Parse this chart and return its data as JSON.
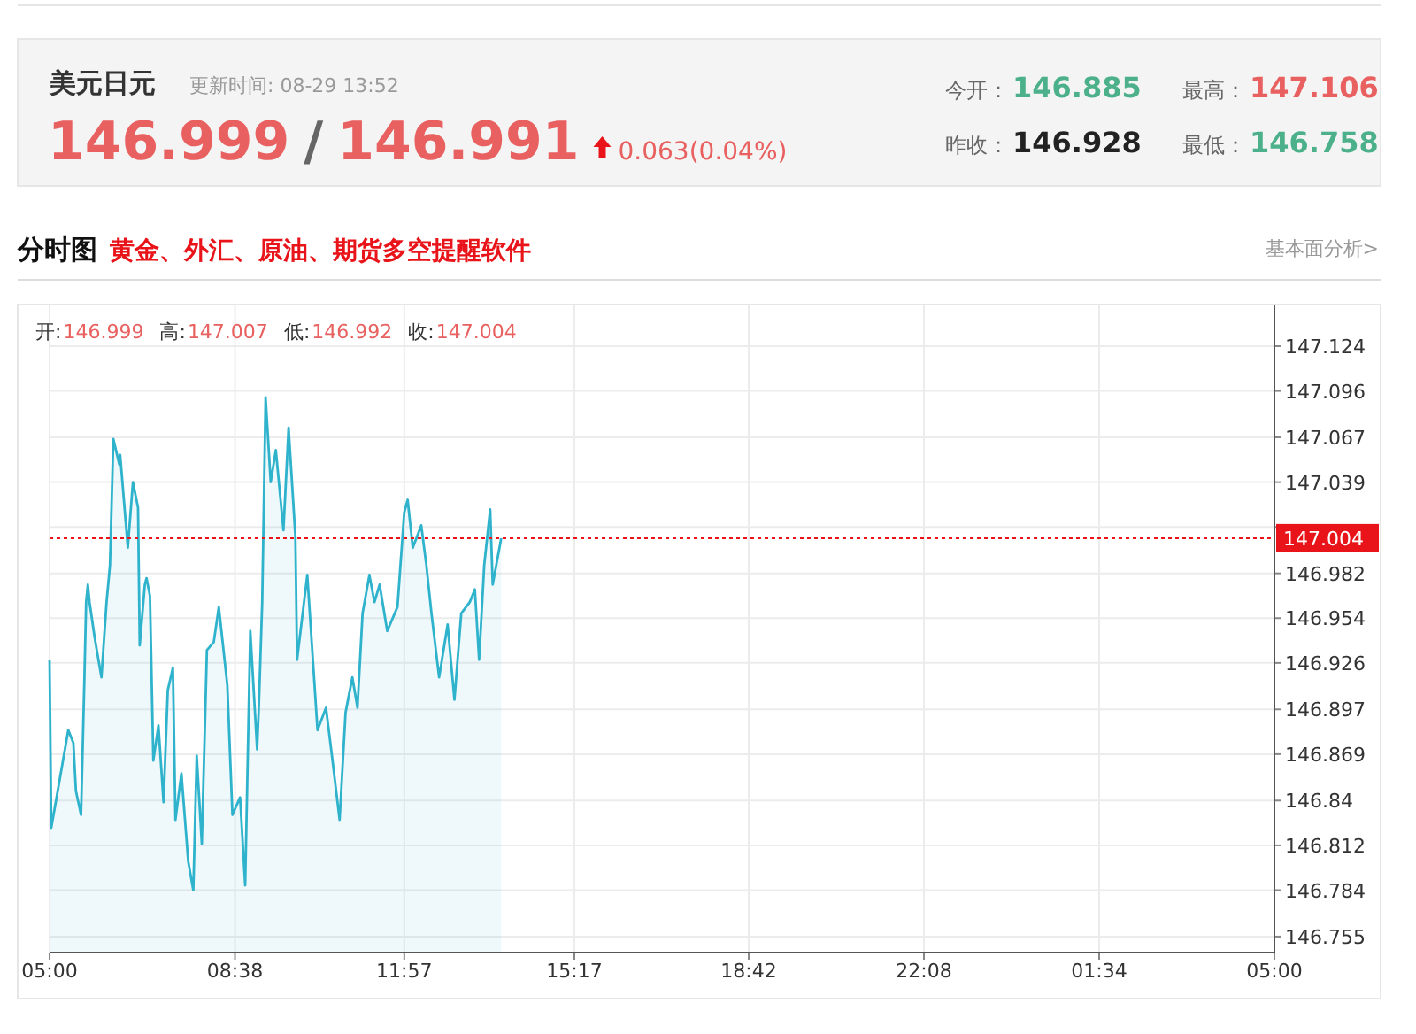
{
  "chart_data": {
    "type": "area",
    "title": "美元日元",
    "subtitle": "更新时间: 08-29 13:52",
    "annotations": [
      "146.999",
      "/",
      "146.991",
      "0.063(0.04%)",
      "今开：",
      "146.885",
      "最高：",
      "147.106",
      "昨收：",
      "146.928",
      "最低：",
      "146.758",
      "分时图",
      "黄金、外汇、原油、期货多空提醒软件",
      "基本面分析>",
      "开:",
      "146.999",
      "高:",
      "147.007",
      "低:",
      "146.992",
      "收:",
      "147.004"
    ],
    "x": [
      "--08-29T05:00",
      "--08-29T05:02",
      "--08-29T05:06",
      "--08-29T05:22",
      "--08-29T05:28",
      "--08-29T05:31",
      "--08-29T05:37",
      "--08-29T05:41",
      "--08-29T05:43",
      "--08-29T05:45",
      "--08-29T05:47",
      "--08-29T05:53",
      "--08-29T06:01",
      "--08-29T06:07",
      "--08-29T06:11",
      "--08-29T06:15",
      "--08-29T06:22",
      "--08-29T06:23",
      "--08-29T06:32",
      "--08-29T06:38",
      "--08-29T06:44",
      "--08-29T06:46",
      "--08-29T06:52",
      "--08-29T06:54",
      "--08-29T06:58",
      "--08-29T07:02",
      "--08-29T07:08",
      "--08-29T07:14",
      "--08-29T07:19",
      "--08-29T07:25",
      "--08-29T07:28",
      "--08-29T07:35",
      "--08-29T07:43",
      "--08-29T07:49",
      "--08-29T07:53",
      "--08-29T07:59",
      "--08-29T08:05",
      "--08-29T08:13",
      "--08-29T08:19",
      "--08-29T08:29",
      "--08-29T08:35",
      "--08-29T08:44",
      "--08-29T08:50",
      "--08-29T08:56",
      "--08-29T09:04",
      "--08-29T09:06",
      "--08-29T09:10",
      "--08-29T09:14",
      "--08-29T09:20",
      "--08-29T09:26",
      "--08-29T09:35",
      "--08-29T09:41",
      "--08-29T09:49",
      "--08-29T09:51",
      "--08-29T10:03",
      "--08-29T10:15",
      "--08-29T10:25",
      "--08-29T10:32",
      "--08-29T10:41",
      "--08-29T10:48",
      "--08-29T10:56",
      "--08-29T11:02",
      "--08-29T11:08",
      "--08-29T11:16",
      "--08-29T11:22",
      "--08-29T11:28",
      "--08-29T11:37",
      "--08-29T11:49",
      "--08-29T11:57",
      "--08-29T12:01",
      "--08-29T12:07",
      "--08-29T12:17",
      "--08-29T12:23",
      "--08-29T12:29",
      "--08-29T12:38",
      "--08-29T12:48",
      "--08-29T12:56",
      "--08-29T13:04",
      "--08-29T13:14",
      "--08-29T13:20",
      "--08-29T13:25",
      "--08-29T13:31",
      "--08-29T13:38",
      "--08-29T13:41",
      "--08-29T13:51"
    ],
    "series": [
      {
        "color": "#2fb3cc",
        "values": [
          146.928,
          146.823,
          146.835,
          146.884,
          146.876,
          146.846,
          146.831,
          146.917,
          146.964,
          146.975,
          146.964,
          146.942,
          146.917,
          146.964,
          146.987,
          147.066,
          147.05,
          147.056,
          146.998,
          147.039,
          147.023,
          146.937,
          146.975,
          146.979,
          146.968,
          146.865,
          146.887,
          146.839,
          146.909,
          146.923,
          146.828,
          146.857,
          146.802,
          146.784,
          146.868,
          146.813,
          146.934,
          146.939,
          146.961,
          146.912,
          146.831,
          146.842,
          146.787,
          146.946,
          146.872,
          146.898,
          146.964,
          147.092,
          147.039,
          147.059,
          147.009,
          147.073,
          147.005,
          146.928,
          146.981,
          146.884,
          146.898,
          146.868,
          146.828,
          146.895,
          146.917,
          146.898,
          146.957,
          146.981,
          146.964,
          146.975,
          146.946,
          146.961,
          147.02,
          147.028,
          146.998,
          147.012,
          146.987,
          146.957,
          146.917,
          146.95,
          146.903,
          146.957,
          146.964,
          146.972,
          146.928,
          146.987,
          147.022,
          146.975,
          147.004
        ]
      }
    ],
    "xlim": [
      "--08-29T05:00",
      "--08-30T05:00"
    ],
    "xticks": [
      {
        "value": "--08-29T05:00",
        "label": "05:00"
      },
      {
        "value": "--08-29T08:38",
        "label": "08:38"
      },
      {
        "value": "--08-29T11:57",
        "label": "11:57"
      },
      {
        "value": "--08-29T15:17",
        "label": "15:17"
      },
      {
        "value": "--08-29T18:42",
        "label": "18:42"
      },
      {
        "value": "--08-29T22:08",
        "label": "22:08"
      },
      {
        "value": "--08-30T01:34",
        "label": "01:34"
      },
      {
        "value": "--08-30T05:00",
        "label": "05:00"
      }
    ],
    "ylim": [
      146.745,
      147.15
    ],
    "yticks": [
      146.755,
      146.784,
      146.812,
      146.84,
      146.869,
      146.897,
      146.926,
      146.954,
      146.982,
      {
        "value": 147.011,
        "label": null
      },
      147.039,
      147.067,
      147.096,
      147.124
    ],
    "ref_lines": [
      {
        "axis": "y",
        "value": 147.004,
        "label": "147.004",
        "color": "#e8141a",
        "line_style": "dotted"
      }
    ],
    "grid": true
  }
}
